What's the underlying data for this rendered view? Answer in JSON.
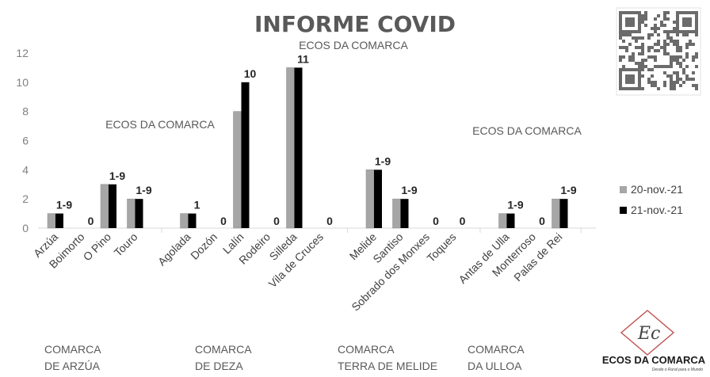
{
  "chart_data": {
    "type": "bar",
    "title": "INFORME COVID",
    "subtitle": "ECOS DA COMARCA",
    "watermarks": [
      "ECOS DA COMARCA",
      "ECOS DA COMARCA"
    ],
    "ylim": [
      0,
      12
    ],
    "yticks": [
      0,
      2,
      4,
      6,
      8,
      10,
      12
    ],
    "grid": false,
    "legend_position": "right",
    "categories": [
      "Arzúa",
      "Boimorto",
      "O Pino",
      "Touro",
      "Agolada",
      "Dozón",
      "Lalín",
      "Rodeiro",
      "Silleda",
      "Vila de Cruces",
      "Melide",
      "Santiso",
      "Sobrado dos Monxes",
      "Toques",
      "Antas de Ulla",
      "Monterroso",
      "Palas de Rei"
    ],
    "series": [
      {
        "name": "20-nov.-21",
        "color": "#a6a6a6",
        "values": [
          1,
          0,
          3,
          2,
          1,
          0,
          8,
          0,
          11,
          0,
          4,
          2,
          0,
          0,
          1,
          0,
          2
        ]
      },
      {
        "name": "21-nov.-21",
        "color": "#000000",
        "values": [
          1,
          0,
          3,
          2,
          1,
          0,
          10,
          0,
          11,
          0,
          4,
          2,
          0,
          0,
          1,
          0,
          2
        ]
      }
    ],
    "data_labels": [
      "1-9",
      "0",
      "1-9",
      "1-9",
      "1",
      "0",
      "10",
      "0",
      "11",
      "0",
      "1-9",
      "1-9",
      "0",
      "0",
      "1-9",
      "0",
      "1-9"
    ],
    "groups": [
      {
        "line1": "COMARCA",
        "line2": "DE ARZÚA",
        "start": 0,
        "end": 3
      },
      {
        "line1": "COMARCA",
        "line2": "DE DEZA",
        "start": 4,
        "end": 9
      },
      {
        "line1": "COMARCA",
        "line2": "TERRA DE MELIDE",
        "start": 10,
        "end": 13
      },
      {
        "line1": "COMARCA",
        "line2": "DA ULLOA",
        "start": 14,
        "end": 16
      }
    ]
  },
  "brand": {
    "name": "ECOS DA COMARCA",
    "monogram": "Ec",
    "tagline": "Desde o Rural para o Mundo"
  }
}
